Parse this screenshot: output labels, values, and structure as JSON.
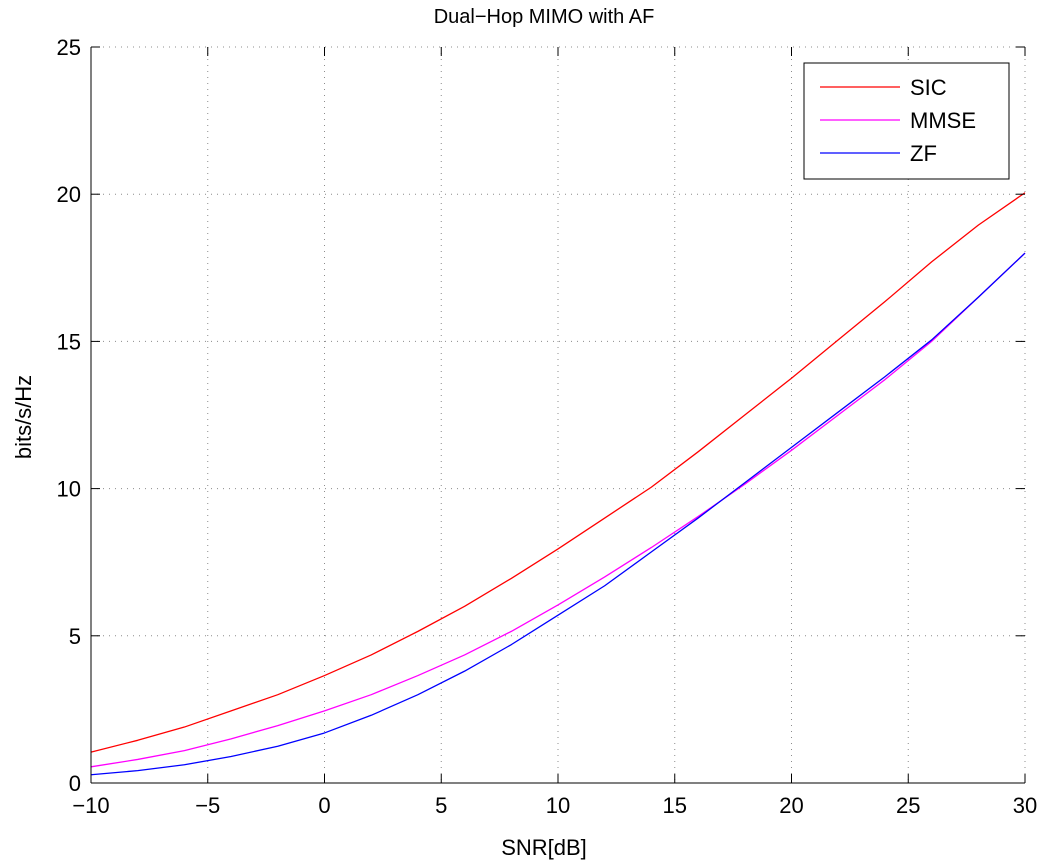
{
  "chart_data": {
    "type": "line",
    "title": "Dual−Hop MIMO with AF",
    "xlabel": "SNR[dB]",
    "ylabel": "bits/s/Hz",
    "xlim": [
      -10,
      30
    ],
    "ylim": [
      0,
      25
    ],
    "xticks": [
      -10,
      -5,
      0,
      5,
      10,
      15,
      20,
      25,
      30
    ],
    "yticks": [
      0,
      5,
      10,
      15,
      20,
      25
    ],
    "xtick_labels": [
      "−10",
      "−5",
      "0",
      "5",
      "10",
      "15",
      "20",
      "25",
      "30"
    ],
    "ytick_labels": [
      "0",
      "5",
      "10",
      "15",
      "20",
      "25"
    ],
    "grid": true,
    "legend_position": "top-right",
    "x": [
      -10,
      -8,
      -6,
      -4,
      -2,
      0,
      2,
      4,
      6,
      8,
      10,
      12,
      14,
      16,
      18,
      20,
      22,
      24,
      26,
      28,
      30
    ],
    "series": [
      {
        "name": "SIC",
        "color": "#ff0000",
        "values": [
          1.05,
          1.45,
          1.9,
          2.45,
          3.0,
          3.65,
          4.35,
          5.15,
          6.0,
          6.95,
          7.95,
          9.0,
          10.05,
          11.25,
          12.5,
          13.75,
          15.05,
          16.35,
          17.7,
          18.95,
          20.05
        ]
      },
      {
        "name": "MMSE",
        "color": "#ff00ff",
        "values": [
          0.55,
          0.8,
          1.1,
          1.5,
          1.95,
          2.45,
          3.0,
          3.65,
          4.35,
          5.15,
          6.05,
          7.0,
          8.0,
          9.05,
          10.15,
          11.3,
          12.5,
          13.7,
          15.0,
          16.5,
          18.0
        ]
      },
      {
        "name": "ZF",
        "color": "#0000ff",
        "values": [
          0.28,
          0.42,
          0.62,
          0.9,
          1.25,
          1.7,
          2.3,
          3.0,
          3.8,
          4.7,
          5.7,
          6.7,
          7.85,
          9.0,
          10.2,
          11.4,
          12.6,
          13.8,
          15.05,
          16.5,
          18.0
        ]
      }
    ]
  }
}
